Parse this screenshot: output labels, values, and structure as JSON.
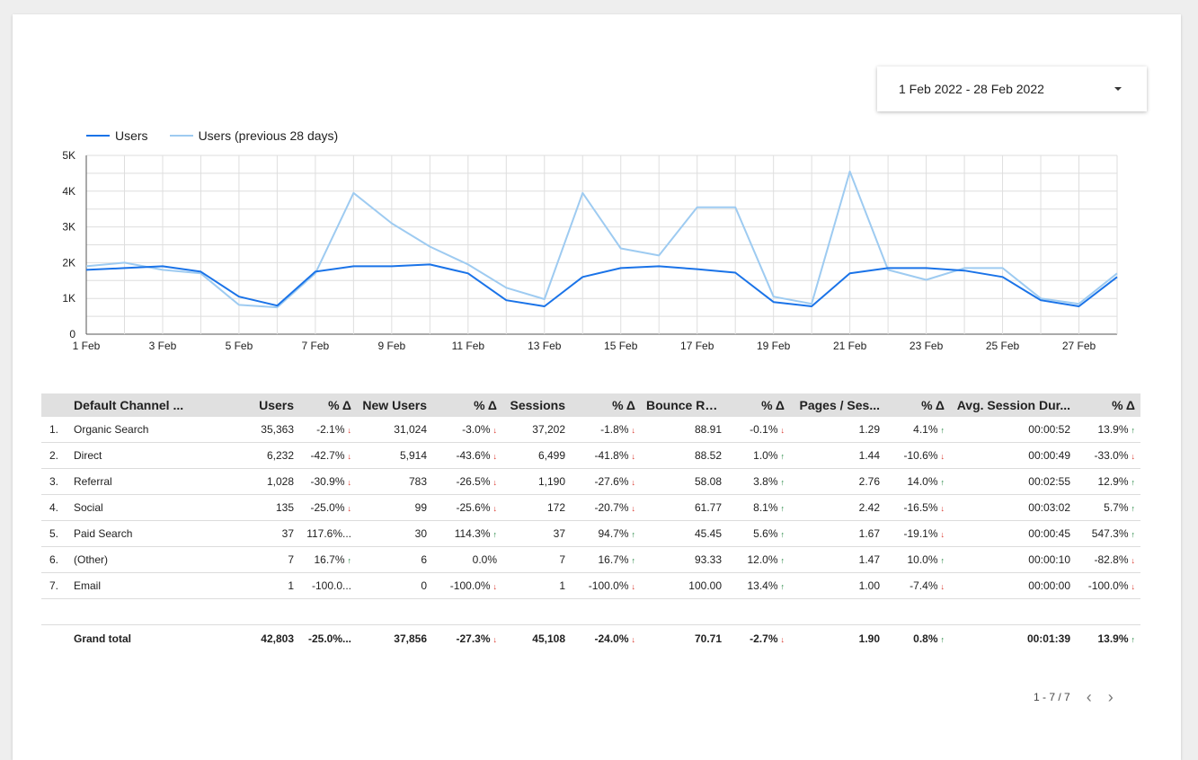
{
  "date_range": {
    "label": "1 Feb 2022 - 28 Feb 2022"
  },
  "legend": [
    {
      "name": "Users",
      "color": "#1a73e8"
    },
    {
      "name": "Users (previous 28 days)",
      "color": "#9ecbf1"
    }
  ],
  "chart_data": {
    "type": "line",
    "x": [
      "1 Feb",
      "2 Feb",
      "3 Feb",
      "4 Feb",
      "5 Feb",
      "6 Feb",
      "7 Feb",
      "8 Feb",
      "9 Feb",
      "10 Feb",
      "11 Feb",
      "12 Feb",
      "13 Feb",
      "14 Feb",
      "15 Feb",
      "16 Feb",
      "17 Feb",
      "18 Feb",
      "19 Feb",
      "20 Feb",
      "21 Feb",
      "22 Feb",
      "23 Feb",
      "24 Feb",
      "25 Feb",
      "26 Feb",
      "27 Feb",
      "28 Feb"
    ],
    "x_tick_labels": [
      "1 Feb",
      "3 Feb",
      "5 Feb",
      "7 Feb",
      "9 Feb",
      "11 Feb",
      "13 Feb",
      "15 Feb",
      "17 Feb",
      "19 Feb",
      "21 Feb",
      "23 Feb",
      "25 Feb",
      "27 Feb"
    ],
    "y_tick_labels": [
      "0",
      "1K",
      "2K",
      "3K",
      "4K",
      "5K"
    ],
    "ylim": [
      0,
      5000
    ],
    "grid": true,
    "legend_position": "top-left",
    "series": [
      {
        "name": "Users",
        "color": "#1a73e8",
        "values": [
          1800,
          1850,
          1900,
          1750,
          1050,
          800,
          1750,
          1900,
          1900,
          1950,
          1700,
          950,
          780,
          1600,
          1850,
          1900,
          1820,
          1720,
          900,
          780,
          1700,
          1850,
          1850,
          1780,
          1600,
          950,
          780,
          1600
        ]
      },
      {
        "name": "Users (previous 28 days)",
        "color": "#9ecbf1",
        "values": [
          1900,
          2000,
          1800,
          1700,
          820,
          750,
          1700,
          3950,
          3100,
          2450,
          1950,
          1300,
          980,
          3950,
          2400,
          2200,
          3550,
          3550,
          1050,
          850,
          4550,
          1800,
          1520,
          1850,
          1850,
          1000,
          850,
          1700
        ]
      }
    ]
  },
  "table": {
    "headers": [
      "Default Channel ...",
      "Users",
      "% Δ",
      "New Users",
      "% Δ",
      "Sessions",
      "% Δ",
      "Bounce Ra...",
      "% Δ",
      "Pages / Ses...",
      "% Δ",
      "Avg. Session Dur...",
      "% Δ"
    ],
    "rows": [
      {
        "idx": "1.",
        "channel": "Organic Search",
        "users": "35,363",
        "users_d": "-2.1%",
        "users_dir": "down",
        "new": "31,024",
        "new_d": "-3.0%",
        "new_dir": "down",
        "sessions": "37,202",
        "sessions_d": "-1.8%",
        "sessions_dir": "down",
        "bounce": "88.91",
        "bounce_d": "-0.1%",
        "bounce_dir": "down",
        "pages": "1.29",
        "pages_d": "4.1%",
        "pages_dir": "up",
        "dur": "00:00:52",
        "dur_d": "13.9%",
        "dur_dir": "up"
      },
      {
        "idx": "2.",
        "channel": "Direct",
        "users": "6,232",
        "users_d": "-42.7%",
        "users_dir": "down",
        "new": "5,914",
        "new_d": "-43.6%",
        "new_dir": "down",
        "sessions": "6,499",
        "sessions_d": "-41.8%",
        "sessions_dir": "down",
        "bounce": "88.52",
        "bounce_d": "1.0%",
        "bounce_dir": "up",
        "pages": "1.44",
        "pages_d": "-10.6%",
        "pages_dir": "down",
        "dur": "00:00:49",
        "dur_d": "-33.0%",
        "dur_dir": "down"
      },
      {
        "idx": "3.",
        "channel": "Referral",
        "users": "1,028",
        "users_d": "-30.9%",
        "users_dir": "down",
        "new": "783",
        "new_d": "-26.5%",
        "new_dir": "down",
        "sessions": "1,190",
        "sessions_d": "-27.6%",
        "sessions_dir": "down",
        "bounce": "58.08",
        "bounce_d": "3.8%",
        "bounce_dir": "up",
        "pages": "2.76",
        "pages_d": "14.0%",
        "pages_dir": "up",
        "dur": "00:02:55",
        "dur_d": "12.9%",
        "dur_dir": "up"
      },
      {
        "idx": "4.",
        "channel": "Social",
        "users": "135",
        "users_d": "-25.0%",
        "users_dir": "down",
        "new": "99",
        "new_d": "-25.6%",
        "new_dir": "down",
        "sessions": "172",
        "sessions_d": "-20.7%",
        "sessions_dir": "down",
        "bounce": "61.77",
        "bounce_d": "8.1%",
        "bounce_dir": "up",
        "pages": "2.42",
        "pages_d": "-16.5%",
        "pages_dir": "down",
        "dur": "00:03:02",
        "dur_d": "5.7%",
        "dur_dir": "up"
      },
      {
        "idx": "5.",
        "channel": "Paid Search",
        "users": "37",
        "users_d": "117.6%...",
        "users_dir": "",
        "new": "30",
        "new_d": "114.3%",
        "new_dir": "up",
        "sessions": "37",
        "sessions_d": "94.7%",
        "sessions_dir": "up",
        "bounce": "45.45",
        "bounce_d": "5.6%",
        "bounce_dir": "up",
        "pages": "1.67",
        "pages_d": "-19.1%",
        "pages_dir": "down",
        "dur": "00:00:45",
        "dur_d": "547.3%",
        "dur_dir": "up"
      },
      {
        "idx": "6.",
        "channel": "(Other)",
        "users": "7",
        "users_d": "16.7%",
        "users_dir": "up",
        "new": "6",
        "new_d": "0.0%",
        "new_dir": "",
        "sessions": "7",
        "sessions_d": "16.7%",
        "sessions_dir": "up",
        "bounce": "93.33",
        "bounce_d": "12.0%",
        "bounce_dir": "up",
        "pages": "1.47",
        "pages_d": "10.0%",
        "pages_dir": "up",
        "dur": "00:00:10",
        "dur_d": "-82.8%",
        "dur_dir": "down"
      },
      {
        "idx": "7.",
        "channel": "Email",
        "users": "1",
        "users_d": "-100.0...",
        "users_dir": "",
        "new": "0",
        "new_d": "-100.0%",
        "new_dir": "down",
        "sessions": "1",
        "sessions_d": "-100.0%",
        "sessions_dir": "down",
        "bounce": "100.00",
        "bounce_d": "13.4%",
        "bounce_dir": "up",
        "pages": "1.00",
        "pages_d": "-7.4%",
        "pages_dir": "down",
        "dur": "00:00:00",
        "dur_d": "-100.0%",
        "dur_dir": "down"
      }
    ],
    "total": {
      "label": "Grand total",
      "users": "42,803",
      "users_d": "-25.0%...",
      "users_dir": "",
      "new": "37,856",
      "new_d": "-27.3%",
      "new_dir": "down",
      "sessions": "45,108",
      "sessions_d": "-24.0%",
      "sessions_dir": "down",
      "bounce": "70.71",
      "bounce_d": "-2.7%",
      "bounce_dir": "down",
      "pages": "1.90",
      "pages_d": "0.8%",
      "pages_dir": "up",
      "dur": "00:01:39",
      "dur_d": "13.9%",
      "dur_dir": "up"
    }
  },
  "pagination": {
    "label": "1 - 7 / 7",
    "prev_icon": "chevron-left-icon",
    "next_icon": "chevron-right-icon"
  },
  "icons": {
    "date_caret": "caret-down-icon",
    "arrow_up": "↑",
    "arrow_down": "↓"
  }
}
